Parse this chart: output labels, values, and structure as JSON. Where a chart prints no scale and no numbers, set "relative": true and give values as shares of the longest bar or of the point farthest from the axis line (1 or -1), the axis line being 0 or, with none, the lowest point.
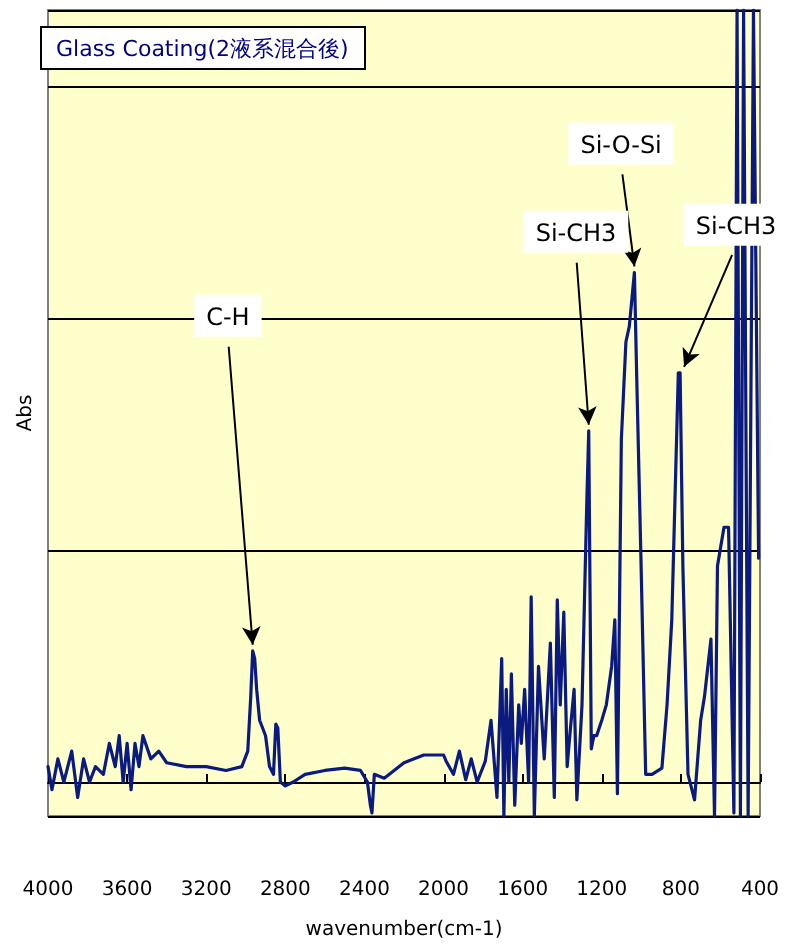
{
  "chart_data": {
    "type": "line",
    "title": "Glass Coating(2液系混合後)",
    "xlabel": "wavenumber(cm-1)",
    "ylabel": "Abs",
    "relative": true,
    "grid": "y",
    "marker": "none",
    "line_style": "solid",
    "xlim": [
      4000,
      400
    ],
    "xticks": [
      4000,
      3600,
      3200,
      2800,
      2400,
      2000,
      1600,
      1200,
      800,
      400
    ],
    "series": [
      {
        "color": "#0a1a80",
        "x": [
          4000,
          3980,
          3950,
          3920,
          3880,
          3850,
          3820,
          3790,
          3760,
          3720,
          3690,
          3660,
          3640,
          3620,
          3600,
          3580,
          3560,
          3540,
          3520,
          3480,
          3440,
          3400,
          3300,
          3200,
          3100,
          3020,
          2990,
          2975,
          2965,
          2955,
          2945,
          2930,
          2900,
          2880,
          2860,
          2848,
          2838,
          2825,
          2800,
          2760,
          2700,
          2600,
          2500,
          2420,
          2385,
          2370,
          2362,
          2350,
          2300,
          2250,
          2200,
          2100,
          2000,
          1987,
          1950,
          1920,
          1888,
          1860,
          1830,
          1789,
          1760,
          1730,
          1706,
          1695,
          1683,
          1670,
          1657,
          1640,
          1620,
          1607,
          1590,
          1570,
          1557,
          1541,
          1520,
          1491,
          1460,
          1440,
          1425,
          1410,
          1392,
          1375,
          1359,
          1340,
          1326,
          1300,
          1276,
          1266,
          1253,
          1240,
          1226,
          1200,
          1177,
          1150,
          1134,
          1121,
          1101,
          1078,
          1061,
          1035,
          1022,
          1002,
          978,
          946,
          896,
          870,
          846,
          813,
          804,
          790,
          764,
          731,
          700,
          681,
          648,
          630,
          615,
          582,
          559,
          532,
          516,
          499,
          483,
          460,
          433,
          407
        ],
        "values": [
          0.02,
          -0.01,
          0.03,
          0.0,
          0.04,
          -0.02,
          0.03,
          0.0,
          0.02,
          0.01,
          0.05,
          0.02,
          0.06,
          0.0,
          0.05,
          -0.01,
          0.05,
          0.02,
          0.06,
          0.03,
          0.04,
          0.025,
          0.02,
          0.02,
          0.015,
          0.02,
          0.04,
          0.11,
          0.17,
          0.16,
          0.12,
          0.08,
          0.06,
          0.02,
          0.01,
          0.075,
          0.07,
          0.0,
          -0.005,
          0.0,
          0.01,
          0.015,
          0.018,
          0.015,
          0.0,
          -0.03,
          -0.04,
          0.01,
          0.005,
          0.015,
          0.025,
          0.035,
          0.035,
          0.027,
          0.01,
          0.04,
          0.003,
          0.03,
          0.0,
          0.027,
          0.08,
          -0.02,
          0.16,
          -0.044,
          0.12,
          0.0,
          0.14,
          -0.03,
          0.1,
          0.05,
          0.12,
          0.0,
          0.24,
          -0.044,
          0.15,
          0.03,
          0.18,
          -0.02,
          0.236,
          0.1,
          0.22,
          0.02,
          0.068,
          0.12,
          -0.023,
          0.1,
          0.36,
          0.455,
          0.043,
          0.06,
          0.06,
          0.08,
          0.1,
          0.15,
          0.21,
          -0.015,
          0.444,
          0.57,
          0.59,
          0.66,
          0.51,
          0.29,
          0.01,
          0.01,
          0.018,
          0.1,
          0.21,
          0.53,
          0.53,
          0.28,
          0.01,
          -0.023,
          0.08,
          0.11,
          0.185,
          -0.044,
          0.28,
          0.33,
          0.33,
          -0.04,
          1.0,
          -0.044,
          1.0,
          -0.044,
          1.0,
          0.29
        ]
      }
    ],
    "annotations": [
      {
        "text": "C-H",
        "x": 2965,
        "y": 0.17
      },
      {
        "text": "Si-CH3",
        "x": 1266,
        "y": 0.455
      },
      {
        "text": "Si-O-Si",
        "x": 1035,
        "y": 0.66
      },
      {
        "text": "Si-CH3",
        "x": 804,
        "y": 0.53
      }
    ]
  }
}
